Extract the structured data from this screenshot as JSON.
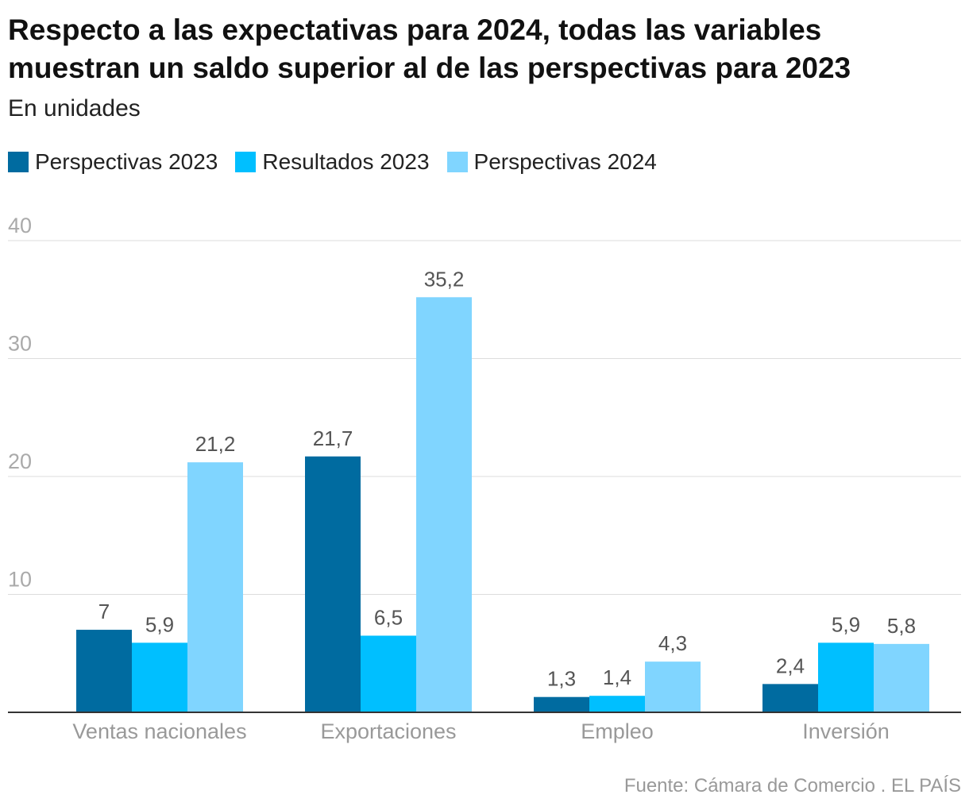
{
  "chart_data": {
    "type": "bar",
    "title": "Respecto a las expectativas para 2024, todas las variables muestran un saldo superior al de las perspectivas para 2023",
    "subtitle": "En unidades",
    "categories": [
      "Ventas nacionales",
      "Exportaciones",
      "Empleo",
      "Inversión"
    ],
    "series": [
      {
        "name": "Perspectivas 2023",
        "color": "#006ba0",
        "values": [
          7,
          21.7,
          1.3,
          2.4
        ],
        "labels": [
          "7",
          "21,7",
          "1,3",
          "2,4"
        ]
      },
      {
        "name": "Resultados 2023",
        "color": "#00bfff",
        "values": [
          5.9,
          6.5,
          1.4,
          5.9
        ],
        "labels": [
          "5,9",
          "6,5",
          "1,4",
          "5,9"
        ]
      },
      {
        "name": "Perspectivas 2024",
        "color": "#80d5ff",
        "values": [
          21.2,
          35.2,
          4.3,
          5.8
        ],
        "labels": [
          "21,2",
          "35,2",
          "4,3",
          "5,8"
        ]
      }
    ],
    "ylim": [
      0,
      40
    ],
    "yticks": [
      10,
      20,
      30,
      40
    ],
    "grid": true,
    "legend_position": "top-left",
    "xlabel": "",
    "ylabel": ""
  },
  "source": "Fuente: Cámara de Comercio . EL PAÍS"
}
